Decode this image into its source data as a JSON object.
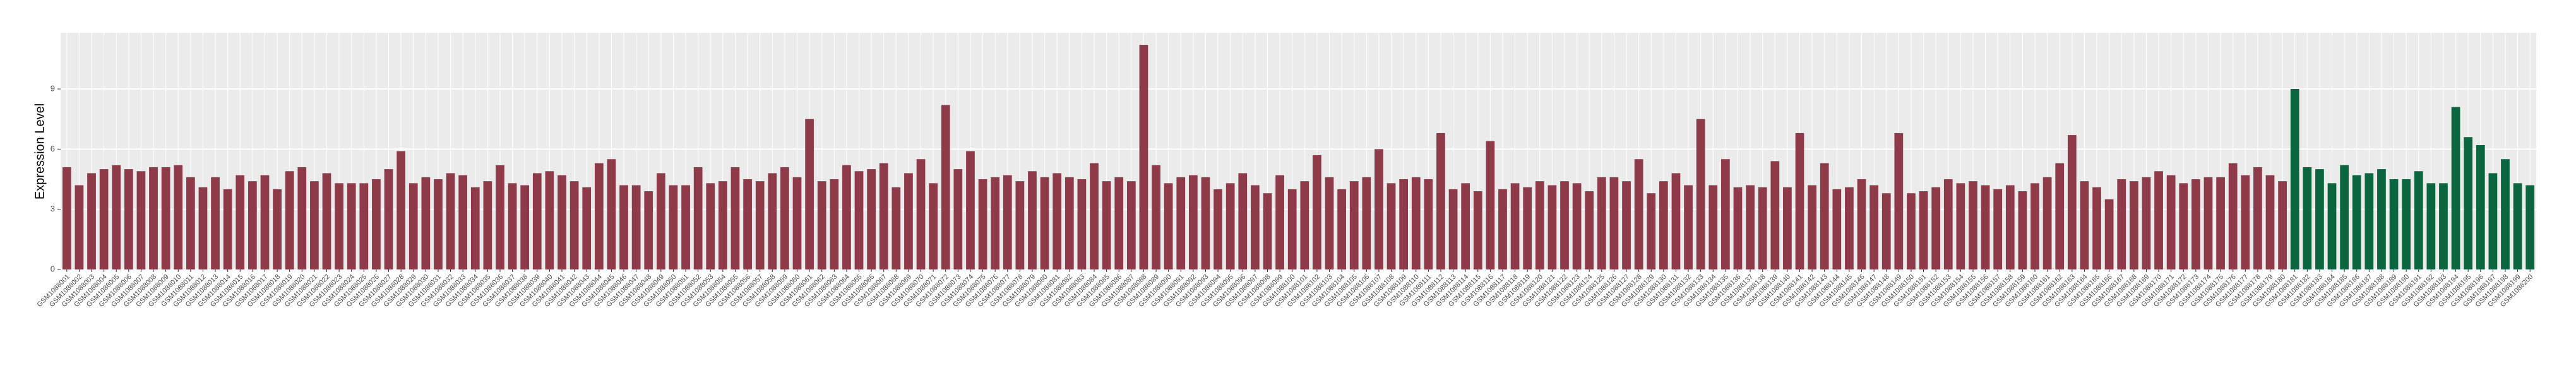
{
  "chart_data": {
    "type": "bar",
    "y_label": "Expression Level",
    "categories": [
      "GSM1088001",
      "GSM1088002",
      "GSM1088003",
      "GSM1088004",
      "GSM1088005",
      "GSM1088006",
      "GSM1088007",
      "GSM1088008",
      "GSM1088009",
      "GSM1088010",
      "GSM1088011",
      "GSM1088012",
      "GSM1088013",
      "GSM1088014",
      "GSM1088015",
      "GSM1088016",
      "GSM1088017",
      "GSM1088018",
      "GSM1088019",
      "GSM1088020",
      "GSM1088021",
      "GSM1088022",
      "GSM1088023",
      "GSM1088024",
      "GSM1088025",
      "GSM1088026",
      "GSM1088027",
      "GSM1088028",
      "GSM1088029",
      "GSM1088030",
      "GSM1088031",
      "GSM1088032",
      "GSM1088033",
      "GSM1088034",
      "GSM1088035",
      "GSM1088036",
      "GSM1088037",
      "GSM1088038",
      "GSM1088039",
      "GSM1088040",
      "GSM1088041",
      "GSM1088042",
      "GSM1088043",
      "GSM1088044",
      "GSM1088045",
      "GSM1088046",
      "GSM1088047",
      "GSM1088048",
      "GSM1088049",
      "GSM1088050",
      "GSM1088051",
      "GSM1088052",
      "GSM1088053",
      "GSM1088054",
      "GSM1088055",
      "GSM1088056",
      "GSM1088057",
      "GSM1088058",
      "GSM1088059",
      "GSM1088060",
      "GSM1088061",
      "GSM1088062",
      "GSM1088063",
      "GSM1088064",
      "GSM1088065",
      "GSM1088066",
      "GSM1088067",
      "GSM1088068",
      "GSM1088069",
      "GSM1088070",
      "GSM1088071",
      "GSM1088072",
      "GSM1088073",
      "GSM1088074",
      "GSM1088075",
      "GSM1088076",
      "GSM1088077",
      "GSM1088078",
      "GSM1088079",
      "GSM1088080",
      "GSM1088081",
      "GSM1088082",
      "GSM1088083",
      "GSM1088084",
      "GSM1088085",
      "GSM1088086",
      "GSM1088087",
      "GSM1088088",
      "GSM1088089",
      "GSM1088090",
      "GSM1088091",
      "GSM1088092",
      "GSM1088093",
      "GSM1088094",
      "GSM1088095",
      "GSM1088096",
      "GSM1088097",
      "GSM1088098",
      "GSM1088099",
      "GSM1088100",
      "GSM1088101",
      "GSM1088102",
      "GSM1088103",
      "GSM1088104",
      "GSM1088105",
      "GSM1088106",
      "GSM1088107",
      "GSM1088108",
      "GSM1088109",
      "GSM1088110",
      "GSM1088111",
      "GSM1088112",
      "GSM1088113",
      "GSM1088114",
      "GSM1088115",
      "GSM1088116",
      "GSM1088117",
      "GSM1088118",
      "GSM1088119",
      "GSM1088120",
      "GSM1088121",
      "GSM1088122",
      "GSM1088123",
      "GSM1088124",
      "GSM1088125",
      "GSM1088126",
      "GSM1088127",
      "GSM1088128",
      "GSM1088129",
      "GSM1088130",
      "GSM1088131",
      "GSM1088132",
      "GSM1088133",
      "GSM1088134",
      "GSM1088135",
      "GSM1088136",
      "GSM1088137",
      "GSM1088138",
      "GSM1088139",
      "GSM1088140",
      "GSM1088141",
      "GSM1088142",
      "GSM1088143",
      "GSM1088144",
      "GSM1088145",
      "GSM1088146",
      "GSM1088147",
      "GSM1088148",
      "GSM1088149",
      "GSM1088150",
      "GSM1088151",
      "GSM1088152",
      "GSM1088153",
      "GSM1088154",
      "GSM1088155",
      "GSM1088156",
      "GSM1088157",
      "GSM1088158",
      "GSM1088159",
      "GSM1088160",
      "GSM1088161",
      "GSM1088162",
      "GSM1088163",
      "GSM1088164",
      "GSM1088165",
      "GSM1088166",
      "GSM1088167",
      "GSM1088168",
      "GSM1088169",
      "GSM1088170",
      "GSM1088171",
      "GSM1088172",
      "GSM1088173",
      "GSM1088174",
      "GSM1088175",
      "GSM1088176",
      "GSM1088177",
      "GSM1088178",
      "GSM1088179",
      "GSM1088180",
      "GSM1088181",
      "GSM1088182",
      "GSM1088183",
      "GSM1088184",
      "GSM1088185",
      "GSM1088186",
      "GSM1088187",
      "GSM1088188",
      "GSM1088189",
      "GSM1088190",
      "GSM1088191",
      "GSM1088192",
      "GSM1088193",
      "GSM1088194",
      "GSM1088195",
      "GSM1088196",
      "GSM1088197",
      "GSM1088198",
      "GSM1088199",
      "GSM1088200"
    ],
    "series": [
      {
        "color": "#8e3a48",
        "values": [
          5.1,
          4.2,
          4.8,
          5.0,
          5.2,
          5.0,
          4.9,
          5.1,
          5.1,
          5.2,
          4.6,
          4.1,
          4.6,
          4.0,
          4.7,
          4.4,
          4.7,
          4.0,
          4.9,
          5.1,
          4.4,
          4.8,
          4.3,
          4.3,
          4.3,
          4.5,
          5.0,
          5.9,
          4.3,
          4.6,
          4.5,
          4.8,
          4.7,
          4.1,
          4.4,
          5.2,
          4.3,
          4.2,
          4.8,
          4.9,
          4.7,
          4.4,
          4.1,
          5.3,
          5.5,
          4.2,
          4.2,
          3.9,
          4.8,
          4.2,
          4.2,
          5.1,
          4.3,
          4.4,
          5.1,
          4.5,
          4.4,
          4.8,
          5.1,
          4.6,
          7.5,
          4.4,
          4.5,
          5.2,
          4.9,
          5.0,
          5.3,
          4.1,
          4.8,
          5.5,
          4.3,
          8.2,
          5.0,
          5.9,
          4.5,
          4.6,
          4.7,
          4.4,
          4.9,
          4.6,
          4.8,
          4.6,
          4.5,
          5.3,
          4.4,
          4.6,
          4.4,
          11.2,
          5.2,
          4.3,
          4.6,
          4.7,
          4.6,
          4.0,
          4.3,
          4.8,
          4.2,
          3.8,
          4.7,
          4.0,
          4.4,
          5.7,
          4.6,
          4.0,
          4.4,
          4.6,
          6.0,
          4.3,
          4.5,
          4.6,
          4.5,
          6.8,
          4.0,
          4.3,
          3.9,
          6.4,
          4.0,
          4.3,
          4.1,
          4.4,
          4.2,
          4.4,
          4.3,
          3.9,
          4.6,
          4.6,
          4.4,
          5.5,
          3.8,
          4.4,
          4.8,
          4.2,
          7.5,
          4.2,
          5.5,
          4.1,
          4.2,
          4.1,
          5.4,
          4.1,
          6.8,
          4.2,
          5.3,
          4.0,
          4.1,
          4.5,
          4.2,
          3.8,
          6.8,
          3.8,
          3.9,
          4.1,
          4.5,
          4.3,
          4.4,
          4.2,
          4.0,
          4.2,
          3.9,
          4.3,
          4.6,
          5.3,
          6.7,
          4.4,
          4.1,
          3.5,
          4.5,
          4.4,
          4.6,
          4.9,
          4.7,
          4.3,
          4.5,
          4.6,
          4.6,
          5.3,
          4.7,
          5.1,
          4.7,
          4.4,
          null,
          null,
          null,
          null,
          null,
          null,
          null,
          null,
          null,
          null,
          null,
          null,
          null,
          null,
          null,
          null,
          null,
          null,
          null,
          null
        ]
      },
      {
        "color": "#0b6640",
        "values": [
          null,
          null,
          null,
          null,
          null,
          null,
          null,
          null,
          null,
          null,
          null,
          null,
          null,
          null,
          null,
          null,
          null,
          null,
          null,
          null,
          null,
          null,
          null,
          null,
          null,
          null,
          null,
          null,
          null,
          null,
          null,
          null,
          null,
          null,
          null,
          null,
          null,
          null,
          null,
          null,
          null,
          null,
          null,
          null,
          null,
          null,
          null,
          null,
          null,
          null,
          null,
          null,
          null,
          null,
          null,
          null,
          null,
          null,
          null,
          null,
          null,
          null,
          null,
          null,
          null,
          null,
          null,
          null,
          null,
          null,
          null,
          null,
          null,
          null,
          null,
          null,
          null,
          null,
          null,
          null,
          null,
          null,
          null,
          null,
          null,
          null,
          null,
          null,
          null,
          null,
          null,
          null,
          null,
          null,
          null,
          null,
          null,
          null,
          null,
          null,
          null,
          null,
          null,
          null,
          null,
          null,
          null,
          null,
          null,
          null,
          null,
          null,
          null,
          null,
          null,
          null,
          null,
          null,
          null,
          null,
          null,
          null,
          null,
          null,
          null,
          null,
          null,
          null,
          null,
          null,
          null,
          null,
          null,
          null,
          null,
          null,
          null,
          null,
          null,
          null,
          null,
          null,
          null,
          null,
          null,
          null,
          null,
          null,
          null,
          null,
          null,
          null,
          null,
          null,
          null,
          null,
          null,
          null,
          null,
          null,
          null,
          null,
          null,
          null,
          null,
          null,
          null,
          null,
          null,
          null,
          null,
          null,
          null,
          null,
          null,
          null,
          null,
          null,
          null,
          null,
          9.0,
          5.1,
          5.0,
          4.3,
          5.2,
          4.7,
          4.8,
          5.0,
          4.5,
          4.5,
          4.9,
          4.3,
          4.3,
          8.1,
          6.6,
          6.2,
          4.8,
          5.5,
          4.3,
          4.2
        ]
      }
    ],
    "ylim": [
      0,
      11.8
    ],
    "yticks": [
      0,
      3,
      6,
      9
    ],
    "grid": true
  }
}
